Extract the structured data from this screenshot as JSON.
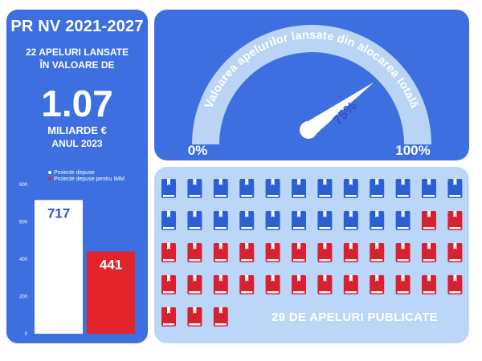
{
  "header": {
    "title": "PR NV 2021-2027",
    "calls_line1": "22 APELURI LANSATE",
    "calls_line2": "ÎN VALOARE DE",
    "amount": "1.07",
    "unit": "MILIARDE €",
    "year": "ANUL 2023"
  },
  "gauge": {
    "arc_label": "Valoarea apelurilor lansate din alocarea totală",
    "value_percent": 75,
    "value_label": "75%",
    "min_label": "0%",
    "max_label": "100%"
  },
  "icons": {
    "total": 51,
    "published": 29,
    "colors": {
      "blue": "#2d5fd4",
      "red": "#d92030"
    },
    "published_label": "29 DE APELURI PUBLICATE"
  },
  "colors": {
    "panel_blue": "#3d6fe0",
    "light_panel": "#bcd6f7",
    "bar_white": "#ffffff",
    "bar_red": "#e3242b",
    "gauge_arc": "#b9d4f5"
  },
  "chart_data": {
    "type": "bar",
    "categories": [
      "Proiecte depuse",
      "Proiecte depuse pentru IMM"
    ],
    "series": [
      {
        "name": "Proiecte depuse",
        "values": [
          717,
          null
        ]
      },
      {
        "name": "Proiecte depuse pentru IMM",
        "values": [
          null,
          441
        ]
      }
    ],
    "values": [
      717,
      441
    ],
    "value_labels": [
      "717",
      "441"
    ],
    "ylim": [
      0,
      800
    ],
    "yticks": [
      0,
      200,
      400,
      600,
      800
    ],
    "legend": [
      "Proiecte depuse",
      "Proiecte depuse pentru IMM"
    ],
    "legend_position": "top",
    "grid": false
  }
}
